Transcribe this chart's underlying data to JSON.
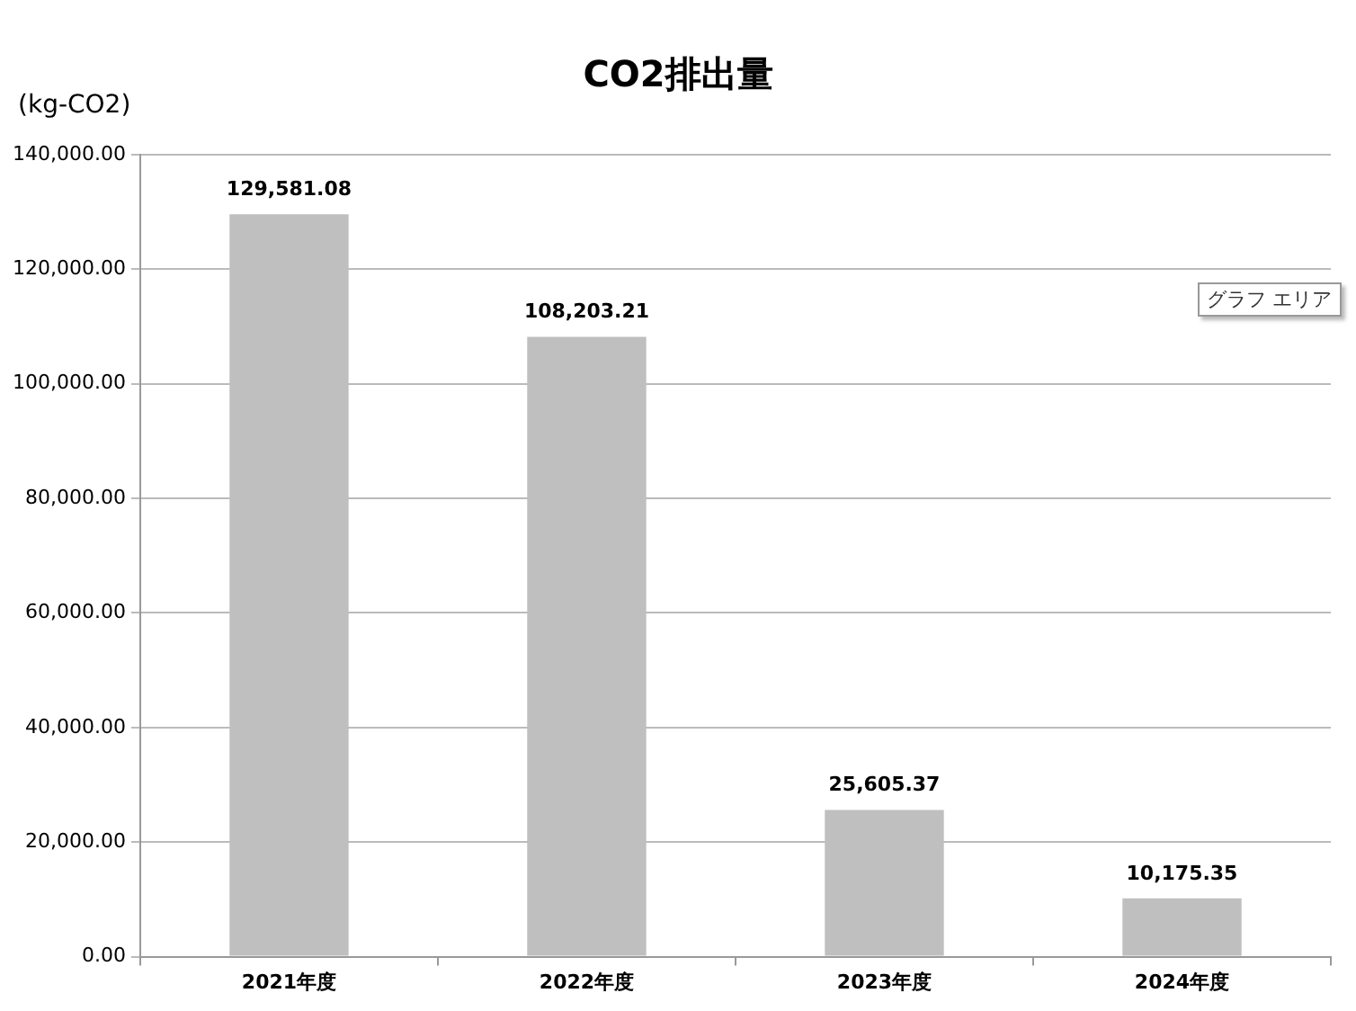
{
  "chart_data": {
    "type": "bar",
    "title": "CO2排出量",
    "ylabel": "(kg-CO2)",
    "categories": [
      "2021年度",
      "2022年度",
      "2023年度",
      "2024年度"
    ],
    "values": [
      129581.08,
      108203.21,
      25605.37,
      10175.35
    ],
    "color": "#bfbfbf",
    "ylim": [
      0,
      140000
    ],
    "yticks": [
      {
        "value": 0,
        "label": "0.00"
      },
      {
        "value": 20000,
        "label": "20,000.00"
      },
      {
        "value": 40000,
        "label": "40,000.00"
      },
      {
        "value": 60000,
        "label": "60,000.00"
      },
      {
        "value": 80000,
        "label": "80,000.00"
      },
      {
        "value": 100000,
        "label": "100,000.00"
      },
      {
        "value": 120000,
        "label": "120,000.00"
      },
      {
        "value": 140000,
        "label": "140,000.00"
      }
    ],
    "value_labels": [
      "129,581.08",
      "108,203.21",
      "25,605.37",
      "10,175.35"
    ],
    "grid": "y",
    "legend": false,
    "annotations": [
      "グラフ エリア"
    ]
  }
}
